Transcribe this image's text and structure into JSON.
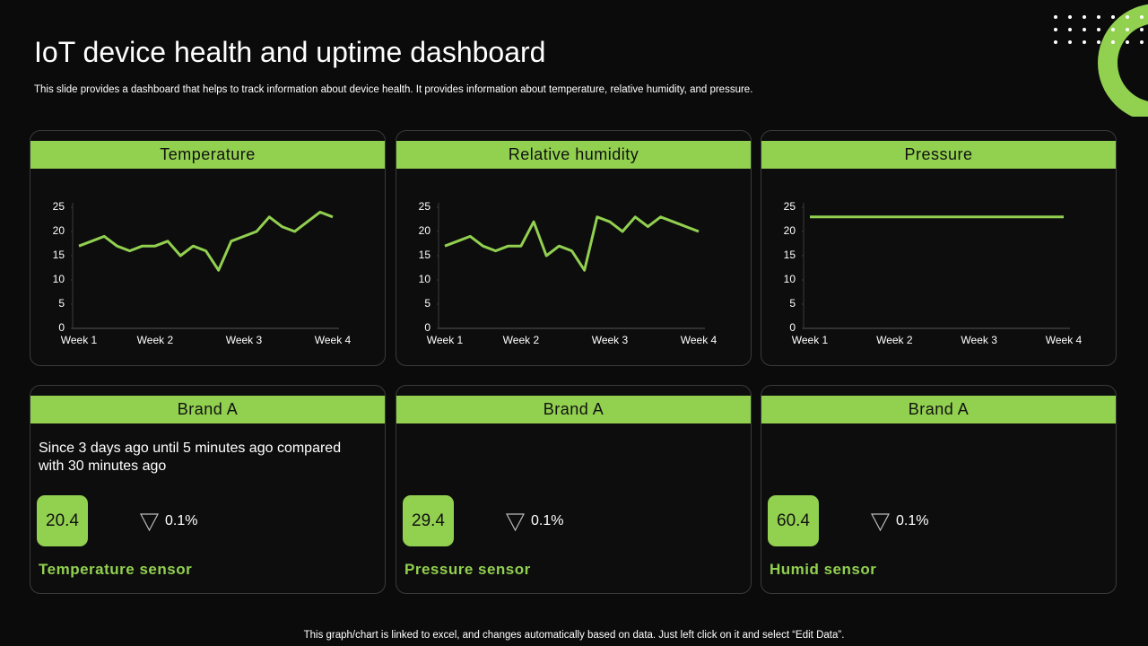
{
  "header": {
    "title": "IoT device health and uptime dashboard",
    "subtitle": "This slide provides a dashboard that helps to track information about device health. It provides information about temperature, relative humidity, and pressure."
  },
  "chart_data": [
    {
      "type": "line",
      "title": "Temperature",
      "color": "#92d050",
      "categories": [
        "Week 1",
        null,
        null,
        null,
        null,
        null,
        "Week 2",
        null,
        null,
        null,
        null,
        null,
        null,
        "Week 3",
        null,
        null,
        null,
        null,
        null,
        null,
        "Week 4"
      ],
      "values": [
        17,
        18,
        19,
        17,
        16,
        17,
        17,
        18,
        15,
        17,
        16,
        12,
        18,
        19,
        20,
        23,
        21,
        20,
        22,
        24,
        23
      ],
      "ylim": [
        0,
        25
      ],
      "yticks": [
        0,
        5,
        10,
        15,
        20,
        25
      ]
    },
    {
      "type": "line",
      "title": "Relative humidity",
      "color": "#92d050",
      "categories": [
        "Week 1",
        null,
        null,
        null,
        null,
        null,
        "Week 2",
        null,
        null,
        null,
        null,
        null,
        null,
        "Week 3",
        null,
        null,
        null,
        null,
        null,
        null,
        "Week 4"
      ],
      "values": [
        17,
        18,
        19,
        17,
        16,
        17,
        17,
        22,
        15,
        17,
        16,
        12,
        23,
        22,
        20,
        23,
        21,
        23,
        22,
        21,
        20
      ],
      "ylim": [
        0,
        25
      ],
      "yticks": [
        0,
        5,
        10,
        15,
        20,
        25
      ]
    },
    {
      "type": "line",
      "title": "Pressure",
      "color": "#92d050",
      "categories": [
        "Week 1",
        "Week 2",
        "Week 3",
        "Week 4"
      ],
      "values": [
        23,
        23,
        23,
        23
      ],
      "ylim": [
        0,
        25
      ],
      "yticks": [
        0,
        5,
        10,
        15,
        20,
        25
      ]
    }
  ],
  "cards": [
    {
      "title": "Brand A",
      "description": "Since 3 days ago until 5 minutes ago compared with 30 minutes ago",
      "value": "20.4",
      "change": "0.1%",
      "label": "Temperature sensor"
    },
    {
      "title": "Brand A",
      "value": "29.4",
      "change": "0.1%",
      "label": "Pressure sensor"
    },
    {
      "title": "Brand A",
      "value": "60.4",
      "change": "0.1%",
      "label": "Humid sensor"
    }
  ],
  "footer": "This graph/chart is linked to excel, and changes automatically based on data. Just left click on it and select “Edit Data”."
}
